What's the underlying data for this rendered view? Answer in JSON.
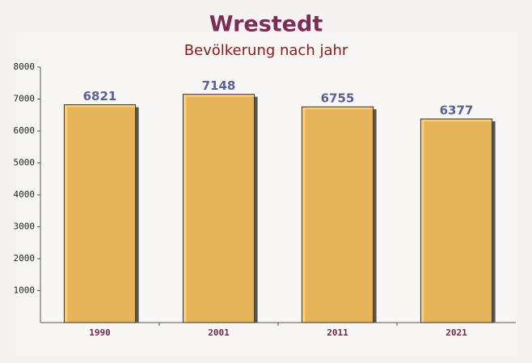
{
  "chart_data": {
    "type": "bar",
    "title": "Wrestedt",
    "subtitle": "Bevölkerung nach jahr",
    "categories": [
      "1990",
      "2001",
      "2011",
      "2021"
    ],
    "values": [
      6821,
      7148,
      6755,
      6377
    ],
    "color": "#ffc55c",
    "ylim": [
      0,
      8000
    ],
    "yticks": [
      1000,
      2000,
      3000,
      4000,
      5000,
      6000,
      7000,
      8000
    ],
    "grid": false
  }
}
